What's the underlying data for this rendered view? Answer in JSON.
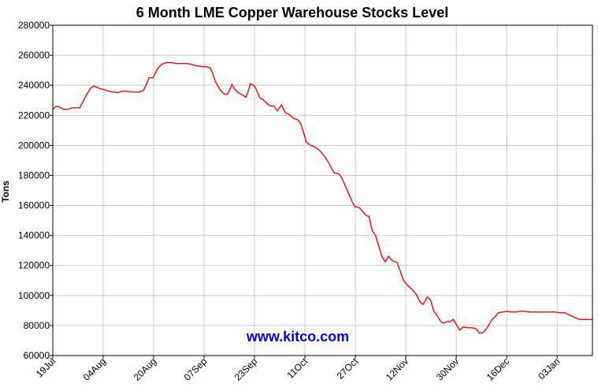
{
  "chart_data": {
    "type": "line",
    "title": "6 Month LME Copper Warehouse Stocks Level",
    "ylabel": "Tons",
    "xlabel": "",
    "ylim": [
      60000,
      280000
    ],
    "yticks": [
      "280000",
      "260000",
      "240000",
      "220000",
      "200000",
      "180000",
      "160000",
      "140000",
      "120000",
      "100000",
      "80000",
      "60000"
    ],
    "xticks": [
      "19Jul",
      "04Aug",
      "20Aug",
      "07Sep",
      "23Sep",
      "11Oct",
      "27Oct",
      "12Nov",
      "30Nov",
      "16Dec",
      "03Jan"
    ],
    "grid": true,
    "watermark": "www.kitco.com",
    "colors": {
      "line": "#ff0000",
      "grid": "#c8c8c8",
      "watermark": "#0000ff"
    },
    "series": [
      {
        "values": [
          [
            0,
            224000
          ],
          [
            3,
            226000
          ],
          [
            6,
            225500
          ],
          [
            10,
            224000
          ],
          [
            14,
            224000
          ],
          [
            18,
            225000
          ],
          [
            22,
            225000
          ],
          [
            25,
            225000
          ],
          [
            30,
            232000
          ],
          [
            35,
            238000
          ],
          [
            38,
            239500
          ],
          [
            43,
            238000
          ],
          [
            48,
            237000
          ],
          [
            52,
            236000
          ],
          [
            57,
            235500
          ],
          [
            60,
            235000
          ],
          [
            64,
            236000
          ],
          [
            70,
            236000
          ],
          [
            75,
            235500
          ],
          [
            80,
            235500
          ],
          [
            84,
            236500
          ],
          [
            87,
            241000
          ],
          [
            89,
            245000
          ],
          [
            93,
            245000
          ],
          [
            97,
            251000
          ],
          [
            101,
            254000
          ],
          [
            105,
            255000
          ],
          [
            110,
            255000
          ],
          [
            115,
            254500
          ],
          [
            120,
            254500
          ],
          [
            124,
            254500
          ],
          [
            128,
            254000
          ],
          [
            133,
            253000
          ],
          [
            138,
            252500
          ],
          [
            142,
            252500
          ],
          [
            146,
            251500
          ],
          [
            148,
            248000
          ],
          [
            151,
            242000
          ],
          [
            155,
            237000
          ],
          [
            159,
            234000
          ],
          [
            162,
            234000
          ],
          [
            166,
            240500
          ],
          [
            169,
            237000
          ],
          [
            172,
            235000
          ],
          [
            176,
            233500
          ],
          [
            179,
            232000
          ],
          [
            181,
            236000
          ],
          [
            183,
            241000
          ],
          [
            187,
            239500
          ],
          [
            189,
            236500
          ],
          [
            192,
            231500
          ],
          [
            195,
            230500
          ],
          [
            198,
            228000
          ],
          [
            201,
            226500
          ],
          [
            205,
            226000
          ],
          [
            208,
            223000
          ],
          [
            212,
            227000
          ],
          [
            215,
            222000
          ],
          [
            219,
            220500
          ],
          [
            223,
            218000
          ],
          [
            227,
            217000
          ],
          [
            230,
            214000
          ],
          [
            233,
            207000
          ],
          [
            235,
            202000
          ],
          [
            239,
            200000
          ],
          [
            244,
            198500
          ],
          [
            248,
            196000
          ],
          [
            252,
            192500
          ],
          [
            255,
            189000
          ],
          [
            258,
            185000
          ],
          [
            261,
            181500
          ],
          [
            265,
            181000
          ],
          [
            268,
            178000
          ],
          [
            271,
            173000
          ],
          [
            274,
            168000
          ],
          [
            277,
            163000
          ],
          [
            280,
            159000
          ],
          [
            284,
            158500
          ],
          [
            287,
            156000
          ],
          [
            290,
            153500
          ],
          [
            293,
            152500
          ],
          [
            296,
            143000
          ],
          [
            299,
            140000
          ],
          [
            302,
            133000
          ],
          [
            305,
            126000
          ],
          [
            308,
            122500
          ],
          [
            311,
            126000
          ],
          [
            315,
            123000
          ],
          [
            319,
            122000
          ],
          [
            322,
            116000
          ],
          [
            325,
            110000
          ],
          [
            329,
            106500
          ],
          [
            333,
            104000
          ],
          [
            337,
            100500
          ],
          [
            340,
            96000
          ],
          [
            343,
            94000
          ],
          [
            347,
            99000
          ],
          [
            350,
            97000
          ],
          [
            353,
            89500
          ],
          [
            356,
            87000
          ],
          [
            359,
            83000
          ],
          [
            362,
            81500
          ],
          [
            365,
            82500
          ],
          [
            368,
            82500
          ],
          [
            371,
            84000
          ],
          [
            374,
            80500
          ],
          [
            377,
            77000
          ],
          [
            380,
            79000
          ],
          [
            384,
            78500
          ],
          [
            388,
            78500
          ],
          [
            392,
            78000
          ],
          [
            395,
            75000
          ],
          [
            398,
            75000
          ],
          [
            401,
            77000
          ],
          [
            404,
            80500
          ],
          [
            407,
            84000
          ],
          [
            410,
            86000
          ],
          [
            413,
            88500
          ],
          [
            417,
            89000
          ],
          [
            421,
            89500
          ],
          [
            425,
            89000
          ],
          [
            429,
            89000
          ],
          [
            433,
            89500
          ],
          [
            437,
            89500
          ],
          [
            441,
            89000
          ],
          [
            445,
            89000
          ],
          [
            450,
            89000
          ],
          [
            455,
            89000
          ],
          [
            460,
            89000
          ],
          [
            465,
            89000
          ],
          [
            470,
            88500
          ],
          [
            474,
            88500
          ],
          [
            477,
            87500
          ],
          [
            480,
            86500
          ],
          [
            483,
            85500
          ],
          [
            486,
            84500
          ],
          [
            489,
            84000
          ],
          [
            493,
            84000
          ],
          [
            497,
            84000
          ],
          [
            500,
            84000
          ]
        ]
      }
    ]
  }
}
